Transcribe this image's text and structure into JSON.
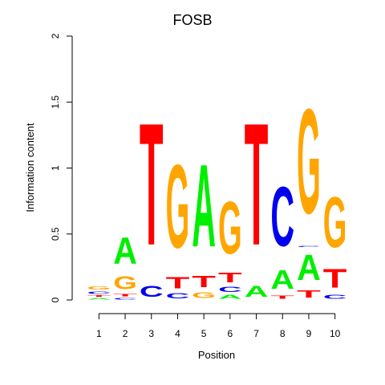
{
  "chart_data": {
    "type": "sequence-logo",
    "title": "FOSB",
    "xlabel": "Position",
    "ylabel": "Information content",
    "ylim": [
      0,
      2
    ],
    "yticks": [
      "0",
      "0.5",
      "1",
      "1.5",
      "2"
    ],
    "positions": [
      "1",
      "2",
      "3",
      "4",
      "5",
      "6",
      "7",
      "8",
      "9",
      "10"
    ],
    "colors": {
      "A": "#00ee00",
      "C": "#0000ee",
      "G": "#ffa500",
      "T": "#ff0000"
    },
    "columns": [
      [
        {
          "letter": "A",
          "height": 0.02
        },
        {
          "letter": "T",
          "height": 0.02
        },
        {
          "letter": "C",
          "height": 0.03
        },
        {
          "letter": "G",
          "height": 0.04
        }
      ],
      [
        {
          "letter": "C",
          "height": 0.02
        },
        {
          "letter": "T",
          "height": 0.03
        },
        {
          "letter": "G",
          "height": 0.16
        },
        {
          "letter": "A",
          "height": 0.32
        }
      ],
      [
        {
          "letter": "C",
          "height": 0.13
        },
        {
          "letter": "T",
          "height": 1.48
        }
      ],
      [
        {
          "letter": "C",
          "height": 0.06
        },
        {
          "letter": "T",
          "height": 0.14
        },
        {
          "letter": "G",
          "height": 1.01
        }
      ],
      [
        {
          "letter": "G",
          "height": 0.07
        },
        {
          "letter": "T",
          "height": 0.14
        },
        {
          "letter": "A",
          "height": 1.0
        }
      ],
      [
        {
          "letter": "A",
          "height": 0.05
        },
        {
          "letter": "C",
          "height": 0.06
        },
        {
          "letter": "T",
          "height": 0.12
        },
        {
          "letter": "G",
          "height": 0.63
        }
      ],
      [
        {
          "letter": "A",
          "height": 0.13
        },
        {
          "letter": "T",
          "height": 1.48
        }
      ],
      [
        {
          "letter": "T",
          "height": 0.04
        },
        {
          "letter": "A",
          "height": 0.23
        },
        {
          "letter": "C",
          "height": 0.72
        }
      ],
      [
        {
          "letter": "T",
          "height": 0.09
        },
        {
          "letter": "A",
          "height": 0.31
        },
        {
          "letter": "C",
          "height": 0.01
        },
        {
          "letter": "G",
          "height": 1.27
        }
      ],
      [
        {
          "letter": "C",
          "height": 0.05
        },
        {
          "letter": "T",
          "height": 0.23
        },
        {
          "letter": "G",
          "height": 0.61
        }
      ]
    ]
  }
}
